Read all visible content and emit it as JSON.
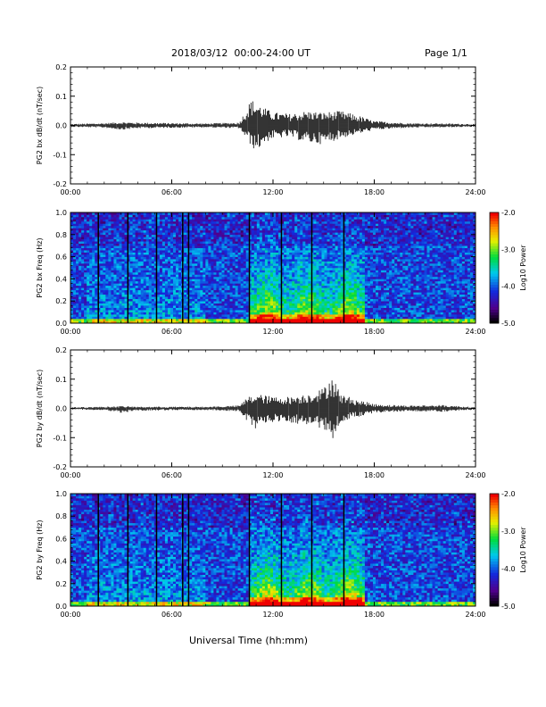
{
  "header": {
    "title": "2018/03/12  00:00-24:00 UT",
    "page": "Page 1/1"
  },
  "footer": {
    "xlabel": "Universal Time (hh:mm)"
  },
  "chart_data": [
    {
      "type": "line",
      "ylabel": "PG2 bx dB/dt (nT/sec)",
      "xlim": [
        0,
        24
      ],
      "x_ticks": [
        "00:00",
        "06:00",
        "12:00",
        "18:00",
        "24:00"
      ],
      "ylim": [
        -0.2,
        0.2
      ],
      "y_ticks": [
        "-0.2",
        "-0.1",
        "0.0",
        "0.1",
        "0.2"
      ],
      "envelope": {
        "hours": [
          0,
          2,
          3,
          4,
          6,
          8,
          10,
          10.7,
          11,
          11.5,
          12,
          13,
          14,
          15,
          16,
          17,
          18,
          20,
          22,
          24
        ],
        "max": [
          0.005,
          0.008,
          0.012,
          0.01,
          0.008,
          0.007,
          0.01,
          0.09,
          0.08,
          0.06,
          0.045,
          0.04,
          0.05,
          0.045,
          0.05,
          0.035,
          0.015,
          0.008,
          0.007,
          0.005
        ],
        "min": [
          -0.005,
          -0.008,
          -0.015,
          -0.01,
          -0.008,
          -0.007,
          -0.01,
          -0.07,
          -0.09,
          -0.06,
          -0.045,
          -0.04,
          -0.06,
          -0.065,
          -0.045,
          -0.03,
          -0.015,
          -0.008,
          -0.007,
          -0.005
        ]
      }
    },
    {
      "type": "heatmap",
      "ylabel": "PG2 bx Freq (Hz)",
      "xlim": [
        0,
        24
      ],
      "x_ticks": [
        "00:00",
        "06:00",
        "12:00",
        "18:00",
        "24:00"
      ],
      "ylim": [
        0,
        1
      ],
      "y_ticks": [
        "0.0",
        "0.2",
        "0.4",
        "0.6",
        "0.8",
        "1.0"
      ],
      "colorbar": {
        "label": "Log10 Power",
        "range": [
          -5.0,
          -2.0
        ],
        "ticks": [
          "-5.0",
          "-4.0",
          "-3.0",
          "-2.0"
        ]
      },
      "dropout_hours": [
        1.65,
        3.4,
        5.1,
        6.65,
        7.0,
        10.6,
        12.5,
        14.3,
        16.2
      ]
    },
    {
      "type": "line",
      "ylabel": "PG2 by dB/dt (nT/sec)",
      "xlim": [
        0,
        24
      ],
      "x_ticks": [
        "00:00",
        "06:00",
        "12:00",
        "18:00",
        "24:00"
      ],
      "ylim": [
        -0.2,
        0.2
      ],
      "y_ticks": [
        "-0.2",
        "-0.1",
        "0.0",
        "0.1",
        "0.2"
      ],
      "envelope": {
        "hours": [
          0,
          2,
          3,
          4,
          6,
          8,
          10,
          10.5,
          11,
          12,
          13,
          14,
          15,
          15.5,
          16,
          17,
          18,
          20,
          22,
          24
        ],
        "max": [
          0.004,
          0.006,
          0.008,
          0.006,
          0.006,
          0.006,
          0.01,
          0.04,
          0.05,
          0.04,
          0.04,
          0.05,
          0.07,
          0.12,
          0.05,
          0.03,
          0.015,
          0.01,
          0.012,
          0.004
        ],
        "min": [
          -0.004,
          -0.006,
          -0.015,
          -0.008,
          -0.006,
          -0.006,
          -0.01,
          -0.05,
          -0.07,
          -0.05,
          -0.05,
          -0.06,
          -0.07,
          -0.11,
          -0.05,
          -0.03,
          -0.015,
          -0.01,
          -0.012,
          -0.004
        ]
      }
    },
    {
      "type": "heatmap",
      "ylabel": "PG2 by Freq (Hz)",
      "xlim": [
        0,
        24
      ],
      "x_ticks": [
        "00:00",
        "06:00",
        "12:00",
        "18:00",
        "24:00"
      ],
      "ylim": [
        0,
        1
      ],
      "y_ticks": [
        "0.0",
        "0.2",
        "0.4",
        "0.6",
        "0.8",
        "1.0"
      ],
      "colorbar": {
        "label": "Log10 Power",
        "range": [
          -5.0,
          -2.0
        ],
        "ticks": [
          "-5.0",
          "-4.0",
          "-3.0",
          "-2.0"
        ]
      },
      "dropout_hours": [
        1.65,
        3.4,
        5.1,
        6.65,
        7.0,
        10.6,
        12.5,
        14.3,
        16.2
      ]
    }
  ]
}
